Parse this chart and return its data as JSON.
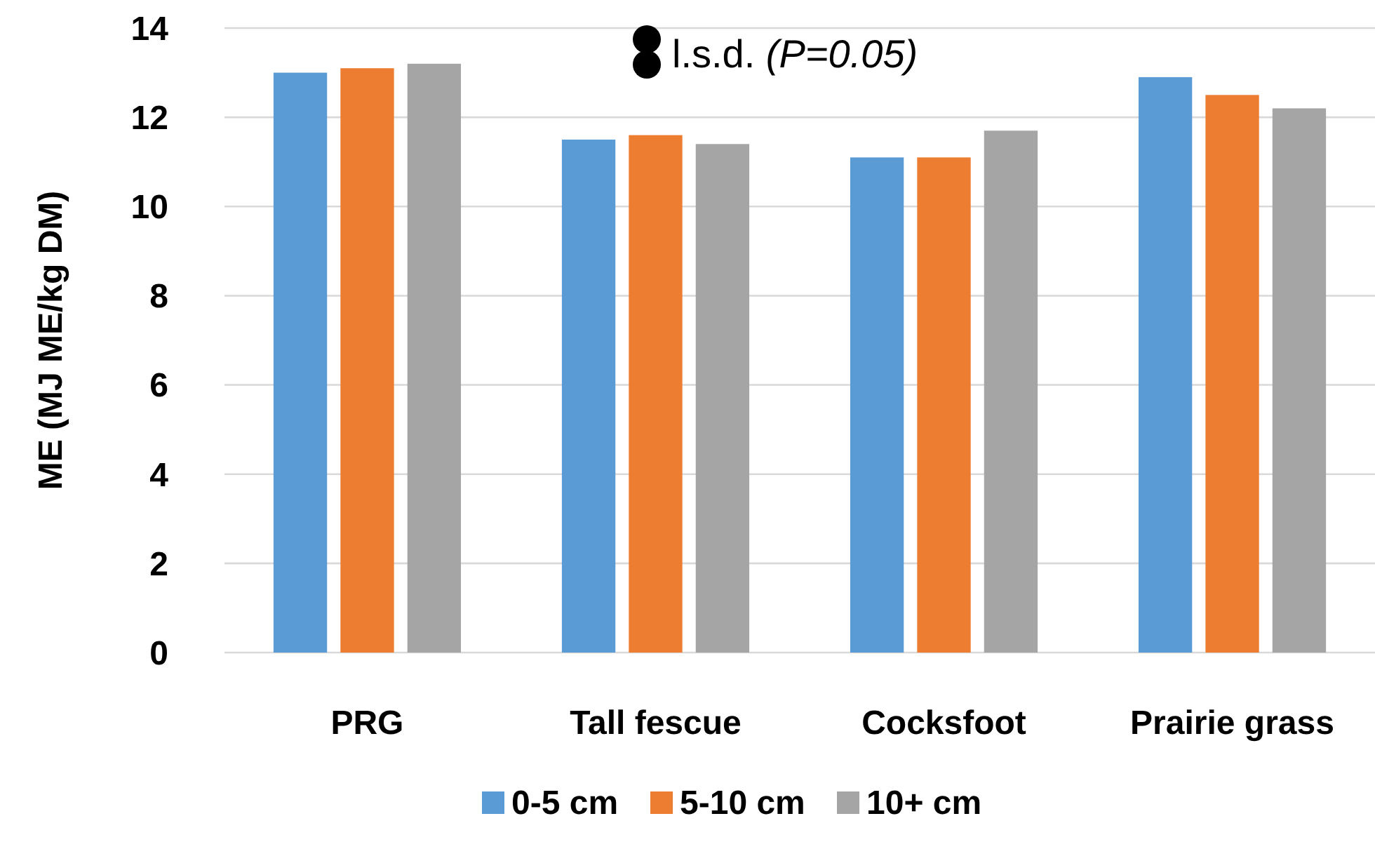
{
  "chart_data": {
    "type": "bar",
    "ylabel": "ME (MJ ME/kg DM)",
    "categories": [
      "PRG",
      "Tall fescue",
      "Cocksfoot",
      "Prairie grass"
    ],
    "series": [
      {
        "name": "0-5 cm",
        "color": "#5b9bd5",
        "values": [
          13.0,
          11.5,
          11.1,
          12.9
        ]
      },
      {
        "name": "5-10 cm",
        "color": "#ed7d31",
        "values": [
          13.1,
          11.6,
          11.1,
          12.5
        ]
      },
      {
        "name": "10+ cm",
        "color": "#a5a5a5",
        "values": [
          13.2,
          11.4,
          11.7,
          12.2
        ]
      }
    ],
    "ylim": [
      0,
      14
    ],
    "yticks": [
      0,
      2,
      4,
      6,
      8,
      10,
      12,
      14
    ],
    "grid": "y",
    "legend": "bottom",
    "annotations": [
      "l.s.d. (P=0.05)"
    ]
  }
}
